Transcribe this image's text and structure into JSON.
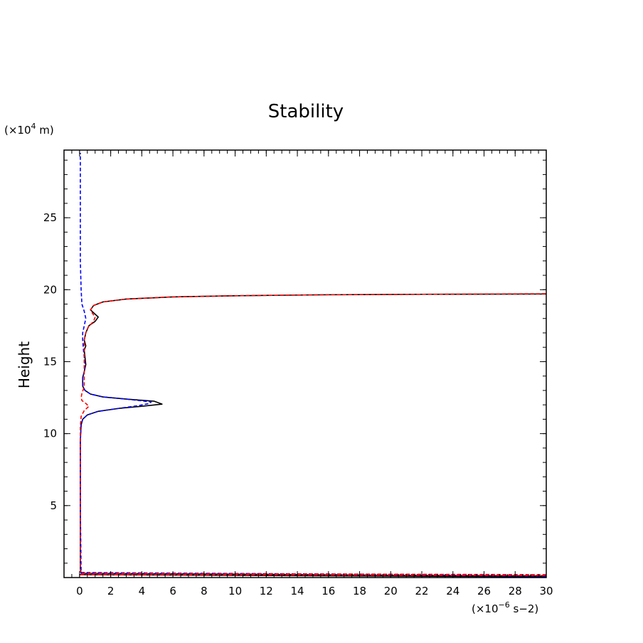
{
  "chart_data": {
    "type": "line",
    "title": "Stability",
    "xlabel": "",
    "ylabel": "Height",
    "x_unit_prefix": "(×10",
    "x_unit_exp": "−6",
    "x_unit_suffix": " s−2)",
    "y_unit_prefix": "(×10",
    "y_unit_exp": "4",
    "y_unit_suffix": " m)",
    "xlim": [
      -1,
      30
    ],
    "ylim": [
      0,
      29.7
    ],
    "x_ticks": [
      0,
      2,
      4,
      6,
      8,
      10,
      12,
      14,
      16,
      18,
      20,
      22,
      24,
      26,
      28,
      30
    ],
    "y_ticks": [
      5,
      10,
      15,
      20,
      25
    ],
    "x_minor_step": 0.5,
    "y_minor_step": 1,
    "grid": false,
    "series": [
      {
        "color": "#000000",
        "dash": "solid",
        "points": [
          [
            0.0,
            0.2
          ],
          [
            30,
            0.05
          ],
          [
            30,
            0.1
          ],
          [
            0.1,
            0.3
          ],
          [
            0.05,
            0.6
          ],
          [
            0.05,
            5.0
          ],
          [
            0.05,
            9.5
          ],
          [
            0.1,
            10.6
          ],
          [
            0.2,
            11.0
          ],
          [
            0.5,
            11.3
          ],
          [
            1.2,
            11.55
          ],
          [
            2.5,
            11.75
          ],
          [
            4.0,
            11.9
          ],
          [
            5.3,
            12.05
          ],
          [
            4.8,
            12.25
          ],
          [
            3.0,
            12.4
          ],
          [
            1.5,
            12.55
          ],
          [
            0.7,
            12.75
          ],
          [
            0.35,
            13.0
          ],
          [
            0.2,
            13.3
          ],
          [
            0.2,
            13.9
          ],
          [
            0.3,
            14.3
          ],
          [
            0.4,
            14.8
          ],
          [
            0.35,
            15.3
          ],
          [
            0.3,
            15.8
          ],
          [
            0.4,
            16.1
          ],
          [
            0.3,
            16.5
          ],
          [
            0.4,
            17.0
          ],
          [
            0.6,
            17.5
          ],
          [
            1.0,
            17.8
          ],
          [
            1.2,
            18.1
          ],
          [
            0.9,
            18.4
          ],
          [
            0.7,
            18.6
          ],
          [
            0.9,
            18.9
          ],
          [
            1.5,
            19.15
          ],
          [
            3.0,
            19.35
          ],
          [
            6.0,
            19.5
          ],
          [
            10.0,
            19.58
          ],
          [
            16.0,
            19.65
          ],
          [
            22.0,
            19.68
          ],
          [
            30.0,
            19.7
          ]
        ]
      },
      {
        "color": "#0000ff",
        "dash": "dashed",
        "points": [
          [
            0.1,
            0.3
          ],
          [
            30,
            0.1
          ],
          [
            30,
            0.15
          ],
          [
            0.1,
            0.35
          ],
          [
            0.05,
            5.0
          ],
          [
            0.05,
            9.5
          ],
          [
            0.1,
            10.6
          ],
          [
            0.2,
            11.0
          ],
          [
            0.5,
            11.3
          ],
          [
            1.2,
            11.55
          ],
          [
            2.5,
            11.75
          ],
          [
            3.8,
            11.95
          ],
          [
            4.5,
            12.1
          ],
          [
            4.6,
            12.2
          ],
          [
            3.0,
            12.4
          ],
          [
            1.5,
            12.55
          ],
          [
            0.7,
            12.75
          ],
          [
            0.35,
            13.0
          ],
          [
            0.2,
            13.3
          ],
          [
            0.2,
            13.9
          ],
          [
            0.3,
            14.3
          ],
          [
            0.35,
            14.8
          ],
          [
            0.3,
            15.3
          ],
          [
            0.25,
            15.8
          ],
          [
            0.2,
            16.5
          ],
          [
            0.2,
            17.0
          ],
          [
            0.3,
            17.5
          ],
          [
            0.4,
            18.0
          ],
          [
            0.3,
            18.5
          ],
          [
            0.15,
            19.0
          ],
          [
            0.1,
            20.0
          ],
          [
            0.05,
            22.0
          ],
          [
            0.05,
            25.0
          ],
          [
            0.05,
            29.5
          ]
        ]
      },
      {
        "color": "#ff0000",
        "dash": "dashed",
        "points": [
          [
            0.05,
            0.2
          ],
          [
            30,
            0.15
          ],
          [
            30,
            0.2
          ],
          [
            0.05,
            0.3
          ],
          [
            0.05,
            5.0
          ],
          [
            0.05,
            10.5
          ],
          [
            0.1,
            11.2
          ],
          [
            0.3,
            11.6
          ],
          [
            0.6,
            11.9
          ],
          [
            0.4,
            12.1
          ],
          [
            0.15,
            12.3
          ],
          [
            0.1,
            12.5
          ],
          [
            0.15,
            12.8
          ],
          [
            0.25,
            13.1
          ],
          [
            0.3,
            13.4
          ],
          [
            0.3,
            14.0
          ],
          [
            0.3,
            14.5
          ],
          [
            0.3,
            15.0
          ],
          [
            0.3,
            15.5
          ],
          [
            0.3,
            16.0
          ],
          [
            0.3,
            16.5
          ],
          [
            0.4,
            17.0
          ],
          [
            0.55,
            17.4
          ],
          [
            0.9,
            17.8
          ],
          [
            1.0,
            18.1
          ],
          [
            0.8,
            18.4
          ],
          [
            0.7,
            18.6
          ],
          [
            0.9,
            18.9
          ],
          [
            1.5,
            19.15
          ],
          [
            3.0,
            19.35
          ],
          [
            6.0,
            19.5
          ],
          [
            10.0,
            19.58
          ],
          [
            16.0,
            19.65
          ],
          [
            22.0,
            19.68
          ],
          [
            30.0,
            19.72
          ]
        ]
      }
    ]
  }
}
